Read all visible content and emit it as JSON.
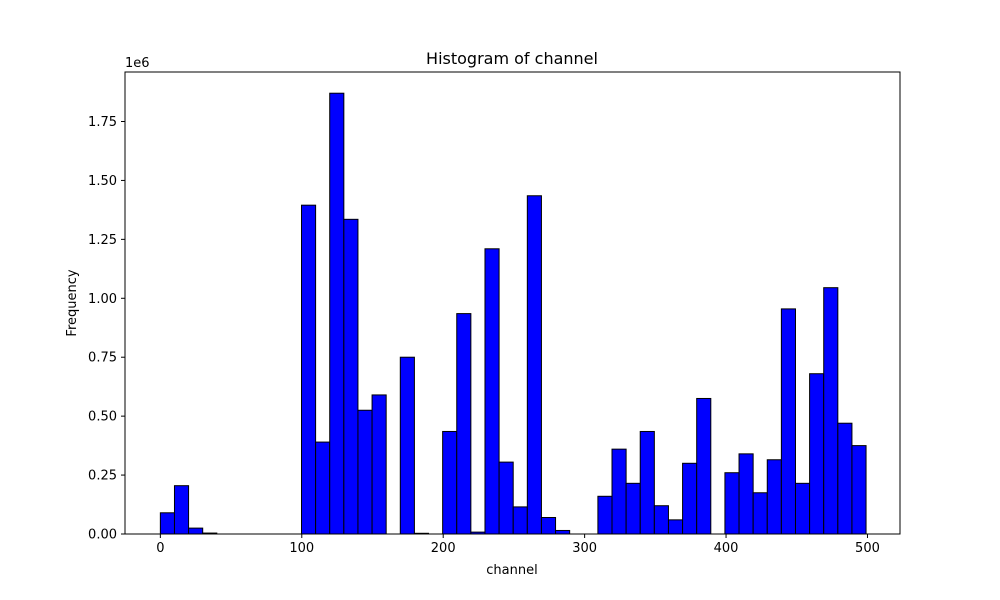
{
  "chart_data": {
    "type": "bar",
    "title": "Histogram of channel",
    "xlabel": "channel",
    "ylabel": "Frequency",
    "y_offset_label": "1e6",
    "xlim": [
      -25.0,
      523.0
    ],
    "ylim": [
      0,
      1.96
    ],
    "x_ticks": [
      0,
      100,
      200,
      300,
      400,
      500
    ],
    "x_tick_labels": [
      "0",
      "100",
      "200",
      "300",
      "400",
      "500"
    ],
    "y_ticks": [
      0,
      0.25,
      0.5,
      0.75,
      1.0,
      1.25,
      1.5,
      1.75
    ],
    "y_tick_labels": [
      "0.00",
      "0.25",
      "0.50",
      "0.75",
      "1.00",
      "1.25",
      "1.50",
      "1.75"
    ],
    "bar_color": "#0000ff",
    "edge_color": "#000000",
    "bin_start": 0,
    "bin_width": 9.98,
    "values": [
      0.09,
      0.205,
      0.025,
      0.004,
      0,
      0,
      0,
      0,
      0,
      0,
      1.395,
      0.39,
      1.87,
      1.335,
      0.525,
      0.59,
      0,
      0.75,
      0.003,
      0,
      0.435,
      0.935,
      0.008,
      1.21,
      0.305,
      0.115,
      1.435,
      0.07,
      0.015,
      0,
      0,
      0.16,
      0.36,
      0.215,
      0.435,
      0.12,
      0.06,
      0.3,
      0.575,
      0,
      0.26,
      0.34,
      0.175,
      0.315,
      0.955,
      0.215,
      0.68,
      1.045,
      0.47,
      0.375
    ]
  }
}
